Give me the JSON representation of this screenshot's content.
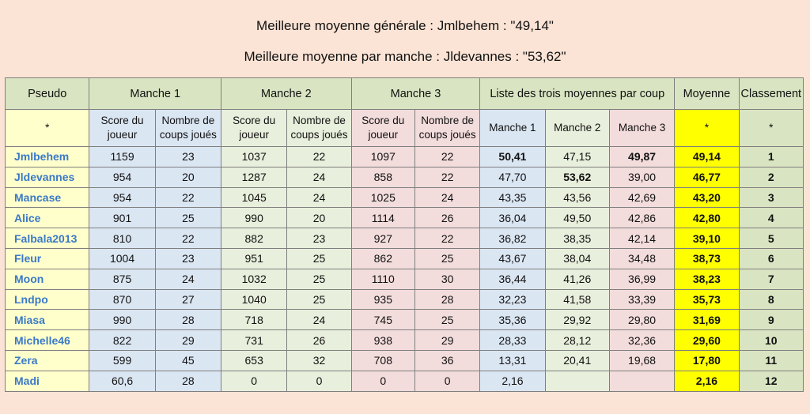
{
  "titles": {
    "line1": "Meilleure moyenne générale : Jmlbehem : \"49,14\"",
    "line2": "Meilleure moyenne par manche : Jldevannes : \"53,62\""
  },
  "header": {
    "pseudo": "Pseudo",
    "manche1": "Manche 1",
    "manche2": "Manche  2",
    "manche3": "Manche 3",
    "liste": "Liste des trois moyennes par coup",
    "moyenne": "Moyenne",
    "classement": "Classement"
  },
  "subheader": {
    "pseudo": "*",
    "score": "Score du joueur",
    "coups": "Nombre de coups joués",
    "lm1": "Manche 1",
    "lm2": "Manche 2",
    "lm3": "Manche 3",
    "moyenne": "*",
    "classement": "*"
  },
  "rows": [
    {
      "pseudo": "Jmlbehem",
      "s1": "1159",
      "c1": "23",
      "s2": "1037",
      "c2": "22",
      "s3": "1097",
      "c3": "22",
      "m1": "50,41",
      "m2": "47,15",
      "m3": "49,87",
      "moy": "49,14",
      "rank": "1",
      "b1": true,
      "b2": false,
      "b3": true
    },
    {
      "pseudo": "Jldevannes",
      "s1": "954",
      "c1": "20",
      "s2": "1287",
      "c2": "24",
      "s3": "858",
      "c3": "22",
      "m1": "47,70",
      "m2": "53,62",
      "m3": "39,00",
      "moy": "46,77",
      "rank": "2",
      "b1": false,
      "b2": true,
      "b3": false
    },
    {
      "pseudo": "Mancase",
      "s1": "954",
      "c1": "22",
      "s2": "1045",
      "c2": "24",
      "s3": "1025",
      "c3": "24",
      "m1": "43,35",
      "m2": "43,56",
      "m3": "42,69",
      "moy": "43,20",
      "rank": "3",
      "b1": false,
      "b2": false,
      "b3": false
    },
    {
      "pseudo": "Alice",
      "s1": "901",
      "c1": "25",
      "s2": "990",
      "c2": "20",
      "s3": "1114",
      "c3": "26",
      "m1": "36,04",
      "m2": "49,50",
      "m3": "42,86",
      "moy": "42,80",
      "rank": "4",
      "b1": false,
      "b2": false,
      "b3": false
    },
    {
      "pseudo": "Falbala2013",
      "s1": "810",
      "c1": "22",
      "s2": "882",
      "c2": "23",
      "s3": "927",
      "c3": "22",
      "m1": "36,82",
      "m2": "38,35",
      "m3": "42,14",
      "moy": "39,10",
      "rank": "5",
      "b1": false,
      "b2": false,
      "b3": false
    },
    {
      "pseudo": "Fleur",
      "s1": "1004",
      "c1": "23",
      "s2": "951",
      "c2": "25",
      "s3": "862",
      "c3": "25",
      "m1": "43,67",
      "m2": "38,04",
      "m3": "34,48",
      "moy": "38,73",
      "rank": "6",
      "b1": false,
      "b2": false,
      "b3": false
    },
    {
      "pseudo": "Moon",
      "s1": "875",
      "c1": "24",
      "s2": "1032",
      "c2": "25",
      "s3": "1110",
      "c3": "30",
      "m1": "36,44",
      "m2": "41,26",
      "m3": "36,99",
      "moy": "38,23",
      "rank": "7",
      "b1": false,
      "b2": false,
      "b3": false
    },
    {
      "pseudo": "Lndpo",
      "s1": "870",
      "c1": "27",
      "s2": "1040",
      "c2": "25",
      "s3": "935",
      "c3": "28",
      "m1": "32,23",
      "m2": "41,58",
      "m3": "33,39",
      "moy": "35,73",
      "rank": "8",
      "b1": false,
      "b2": false,
      "b3": false
    },
    {
      "pseudo": "Miasa",
      "s1": "990",
      "c1": "28",
      "s2": "718",
      "c2": "24",
      "s3": "745",
      "c3": "25",
      "m1": "35,36",
      "m2": "29,92",
      "m3": "29,80",
      "moy": "31,69",
      "rank": "9",
      "b1": false,
      "b2": false,
      "b3": false
    },
    {
      "pseudo": "Michelle46",
      "s1": "822",
      "c1": "29",
      "s2": "731",
      "c2": "26",
      "s3": "938",
      "c3": "29",
      "m1": "28,33",
      "m2": "28,12",
      "m3": "32,36",
      "moy": "29,60",
      "rank": "10",
      "b1": false,
      "b2": false,
      "b3": false
    },
    {
      "pseudo": "Zera",
      "s1": "599",
      "c1": "45",
      "s2": "653",
      "c2": "32",
      "s3": "708",
      "c3": "36",
      "m1": "13,31",
      "m2": "20,41",
      "m3": "19,68",
      "moy": "17,80",
      "rank": "11",
      "b1": false,
      "b2": false,
      "b3": false
    },
    {
      "pseudo": "Madi",
      "s1": "60,6",
      "c1": "28",
      "s2": "0",
      "c2": "0",
      "s3": "0",
      "c3": "0",
      "m1": "2,16",
      "m2": "",
      "m3": "",
      "moy": "2,16",
      "rank": "12",
      "b1": false,
      "b2": false,
      "b3": false
    }
  ]
}
